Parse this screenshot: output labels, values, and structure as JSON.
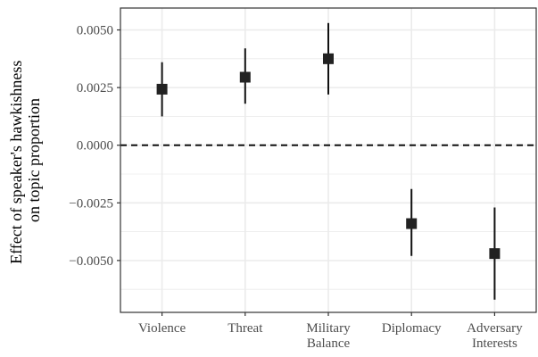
{
  "chart_data": {
    "type": "errorbar",
    "title": "",
    "xlabel": "",
    "ylabel_lines": [
      "Effect of speaker's hawkishness",
      "on topic proportion"
    ],
    "categories": [
      [
        "Violence"
      ],
      [
        "Threat"
      ],
      [
        "Military",
        "Balance"
      ],
      [
        "Diplomacy"
      ],
      [
        "Adversary",
        "Interests"
      ]
    ],
    "points": [
      {
        "estimate": 0.00243,
        "lower": 0.00125,
        "upper": 0.0036
      },
      {
        "estimate": 0.00295,
        "lower": 0.0018,
        "upper": 0.0042
      },
      {
        "estimate": 0.00375,
        "lower": 0.0022,
        "upper": 0.0053
      },
      {
        "estimate": -0.0034,
        "lower": -0.0048,
        "upper": -0.0019
      },
      {
        "estimate": -0.0047,
        "lower": -0.0067,
        "upper": -0.0027
      }
    ],
    "y_ticks": [
      "0.0050",
      "0.0025",
      "0.0000",
      "-0.0025",
      "-0.0050"
    ],
    "y_tick_values": [
      0.005,
      0.0025,
      0,
      -0.0025,
      -0.005
    ],
    "ylim": [
      -0.00725,
      0.00595
    ],
    "reference_line": 0,
    "grid": true,
    "legend": "none",
    "colors": {
      "point": "#222222",
      "errorbar": "#111111",
      "grid": "#ebebeb",
      "border": "#333333",
      "reference": "#000000"
    }
  }
}
